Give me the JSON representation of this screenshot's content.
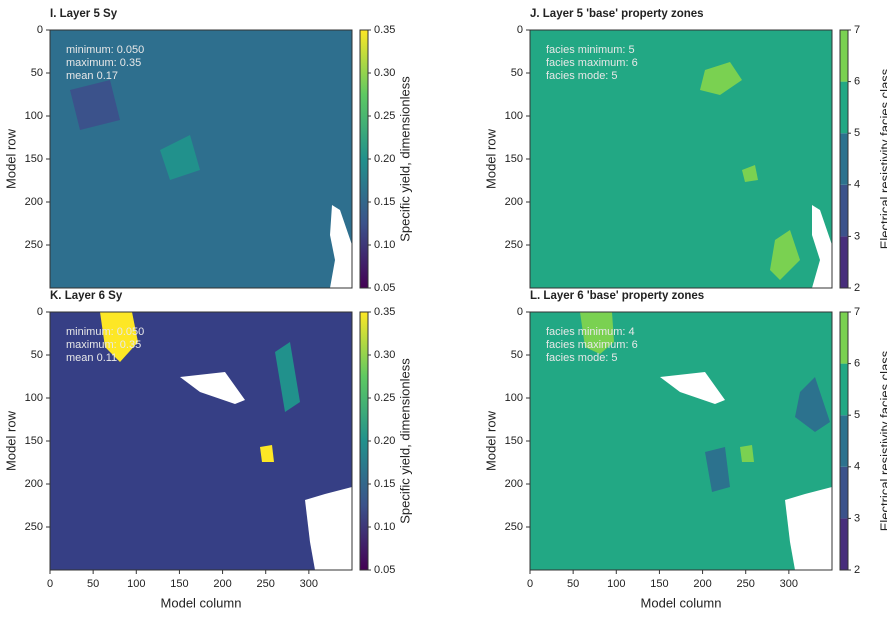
{
  "chart_data": [
    {
      "type": "heatmap",
      "title": "I. Layer 5 Sy",
      "annotations": [
        "minimum: 0.050",
        "maximum: 0.35",
        "mean 0.17"
      ],
      "ylabel": "Model row",
      "xlim": [
        0,
        350
      ],
      "ylim": [
        300,
        0
      ],
      "yticks": [
        0,
        50,
        100,
        150,
        200,
        250
      ],
      "colorbar_label": "Specific yield, dimensionless",
      "clim": [
        0.05,
        0.35
      ],
      "cticks": [
        0.05,
        {
          "value": 0.1,
          "label": "0.10"
        },
        0.15,
        {
          "value": 0.2,
          "label": "0.20"
        },
        0.25,
        {
          "value": 0.3,
          "label": "0.30"
        },
        0.35
      ],
      "colormap": [
        "#440154",
        "#3b528b",
        "#21918c",
        "#5ec962",
        "#fde725"
      ]
    },
    {
      "type": "heatmap",
      "title": "J. Layer 5  'base' property zones",
      "annotations": [
        "facies minimum: 5",
        "facies maximum: 6",
        "facies mode: 5"
      ],
      "ylabel": "Model row",
      "xlim": [
        0,
        350
      ],
      "ylim": [
        300,
        0
      ],
      "yticks": [
        0,
        50,
        100,
        150,
        200,
        250
      ],
      "colorbar_label": "Electrical resistivity facies class",
      "clim": [
        2,
        7
      ],
      "cticks": [
        2,
        3,
        4,
        5,
        6,
        7
      ],
      "colormap": [
        "#472d7b",
        "#3b528b",
        "#2c728e",
        "#22a884",
        "#7ad151"
      ],
      "discrete": true
    },
    {
      "type": "heatmap",
      "title": "K. Layer 6 Sy",
      "annotations": [
        "minimum: 0.050",
        "maximum: 0.35",
        "mean 0.11"
      ],
      "xlabel": "Model column",
      "ylabel": "Model row",
      "xlim": [
        0,
        350
      ],
      "ylim": [
        300,
        0
      ],
      "xticks": [
        0,
        50,
        100,
        150,
        200,
        250,
        300
      ],
      "yticks": [
        0,
        50,
        100,
        150,
        200,
        250
      ],
      "colorbar_label": "Specific yield, dimensionless",
      "clim": [
        0.05,
        0.35
      ],
      "cticks": [
        0.05,
        {
          "value": 0.1,
          "label": "0.10"
        },
        0.15,
        {
          "value": 0.2,
          "label": "0.20"
        },
        0.25,
        {
          "value": 0.3,
          "label": "0.30"
        },
        0.35
      ],
      "colormap": [
        "#440154",
        "#3b528b",
        "#21918c",
        "#5ec962",
        "#fde725"
      ]
    },
    {
      "type": "heatmap",
      "title": "L. Layer 6  'base' property zones",
      "annotations": [
        "facies minimum: 4",
        "facies maximum: 6",
        "facies mode: 5"
      ],
      "xlabel": "Model column",
      "ylabel": "Model row",
      "xlim": [
        0,
        350
      ],
      "ylim": [
        300,
        0
      ],
      "xticks": [
        0,
        50,
        100,
        150,
        200,
        250,
        300
      ],
      "yticks": [
        0,
        50,
        100,
        150,
        200,
        250
      ],
      "colorbar_label": "Electrical resistivity facies class",
      "clim": [
        2,
        7
      ],
      "cticks": [
        2,
        3,
        4,
        5,
        6,
        7
      ],
      "colormap": [
        "#472d7b",
        "#3b528b",
        "#2c728e",
        "#22a884",
        "#7ad151"
      ],
      "discrete": true
    }
  ]
}
